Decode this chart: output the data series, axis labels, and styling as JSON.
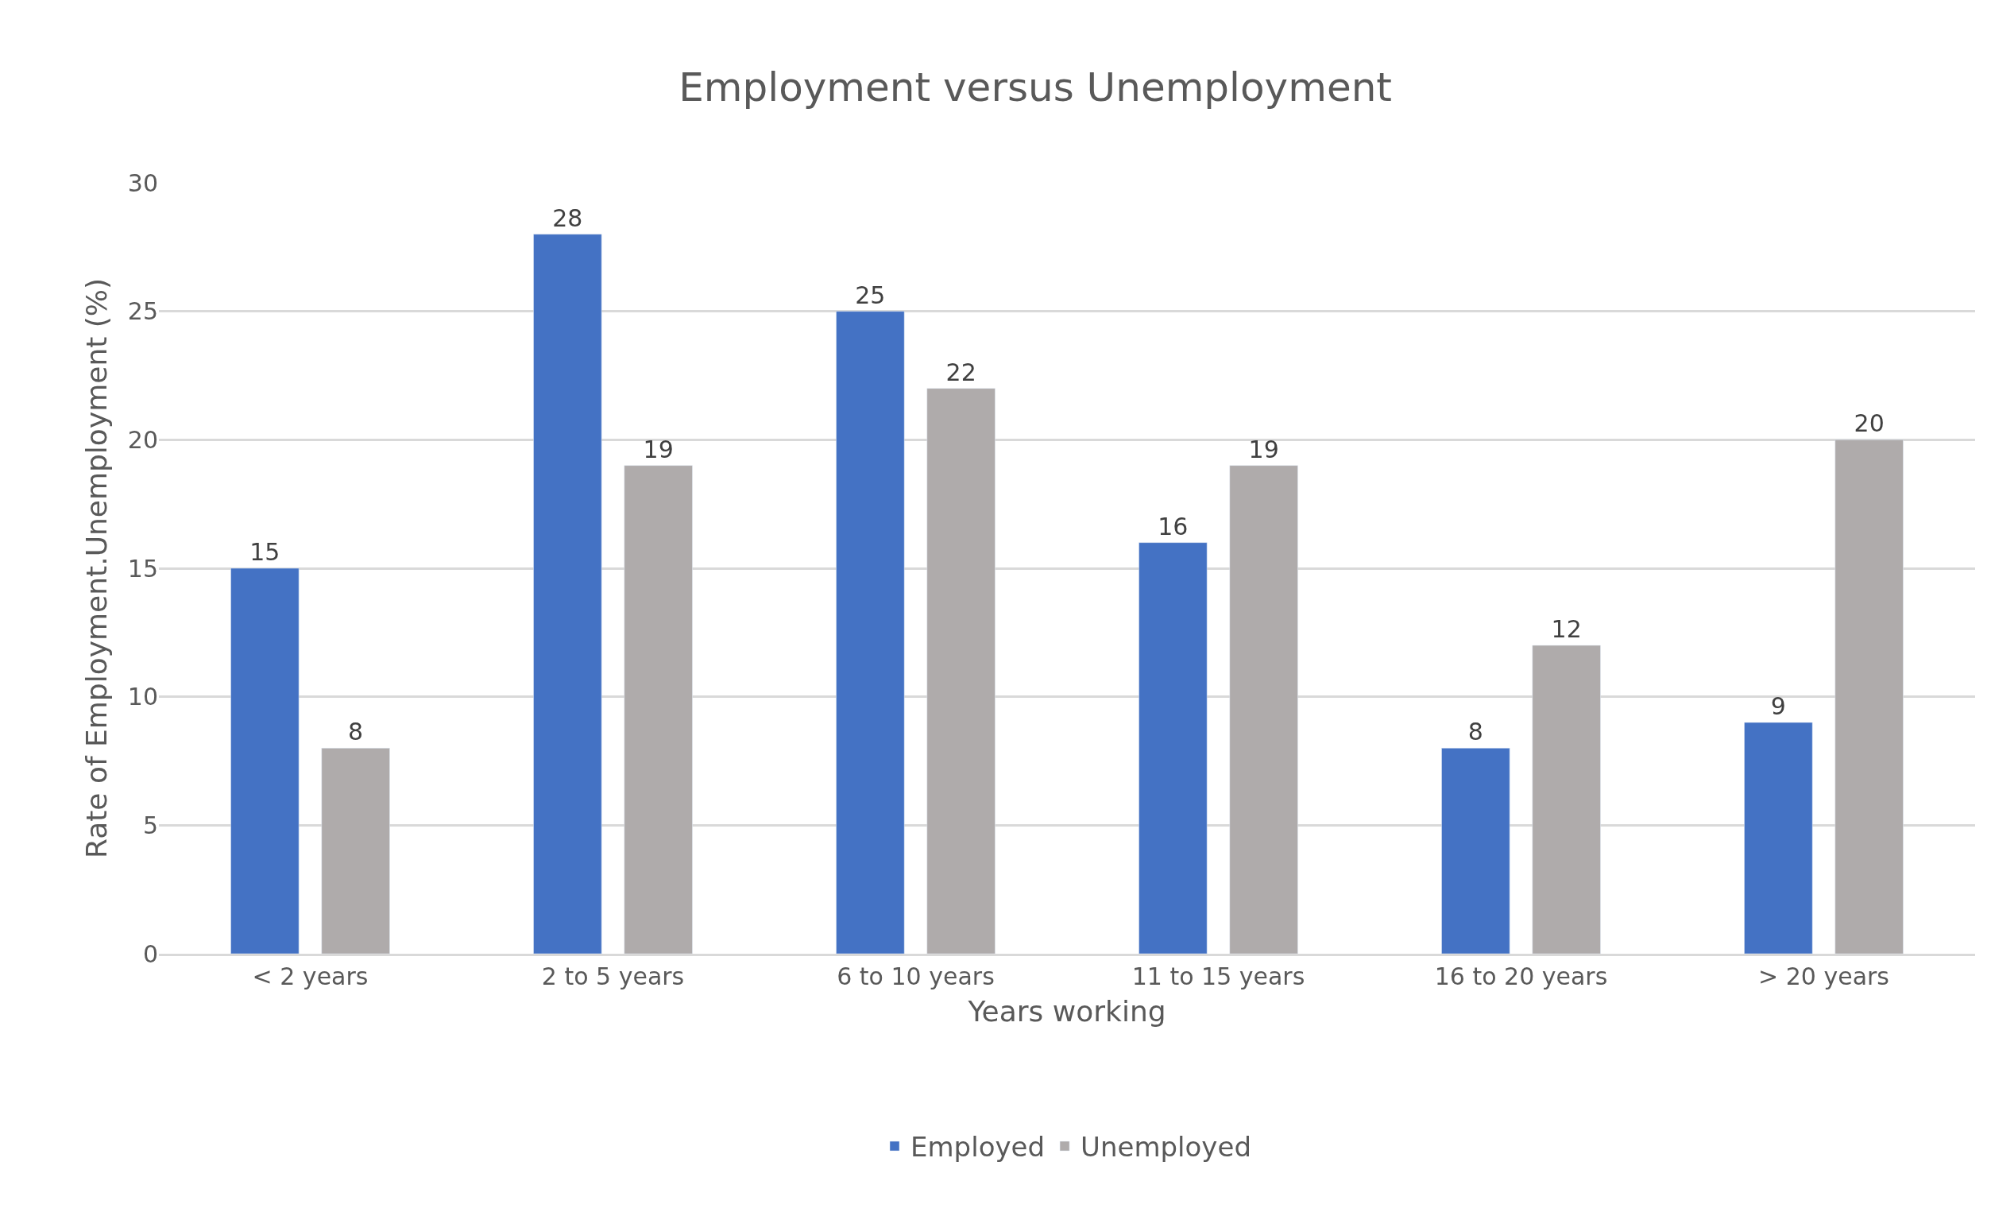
{
  "chart_data": {
    "type": "bar",
    "title": "Employment versus Unemployment",
    "xlabel": "Years working",
    "ylabel": "Rate of Employment.Unemployment (%)",
    "categories": [
      "< 2 years",
      "2 to 5 years",
      "6 to 10 years",
      "11 to 15 years",
      "16 to 20 years",
      "> 20 years"
    ],
    "series": [
      {
        "name": "Employed",
        "color": "#4472c4",
        "values": [
          15,
          28,
          25,
          16,
          8,
          9
        ]
      },
      {
        "name": "Unemployed",
        "color": "#afabab",
        "values": [
          8,
          19,
          22,
          19,
          12,
          20
        ]
      }
    ],
    "ylim": [
      0,
      30
    ],
    "yticks": [
      0,
      5,
      10,
      15,
      20,
      25,
      30
    ],
    "grid": "y",
    "legend": "bottom",
    "data_labels": true
  }
}
